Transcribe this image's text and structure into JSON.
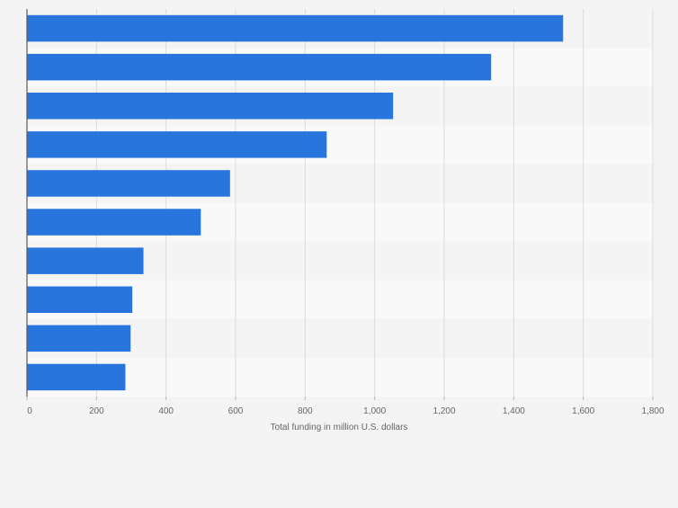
{
  "chart_data": {
    "type": "bar",
    "orientation": "horizontal",
    "title": "",
    "xlabel": "Total funding in million U.S. dollars",
    "ylabel": "",
    "categories": [
      "",
      "",
      "",
      "",
      "",
      "",
      "",
      "",
      "",
      ""
    ],
    "values": [
      1542,
      1335,
      1053,
      862,
      584,
      500,
      335,
      303,
      298,
      283
    ],
    "xlim": [
      0,
      1800
    ],
    "ticks": [
      0,
      200,
      400,
      600,
      800,
      1000,
      1200,
      1400,
      1600,
      1800
    ],
    "tick_labels": [
      "0",
      "200",
      "400",
      "600",
      "800",
      "1,000",
      "1,200",
      "1,400",
      "1,600",
      "1,800"
    ],
    "grid": true,
    "bar_color": "#2876dd",
    "band_colors": [
      "#f4f4f4",
      "#f9f9f9"
    ],
    "gridline_color": "#dcdcdc",
    "axis_color": "#5a5a5a",
    "text_color": "#666666"
  }
}
